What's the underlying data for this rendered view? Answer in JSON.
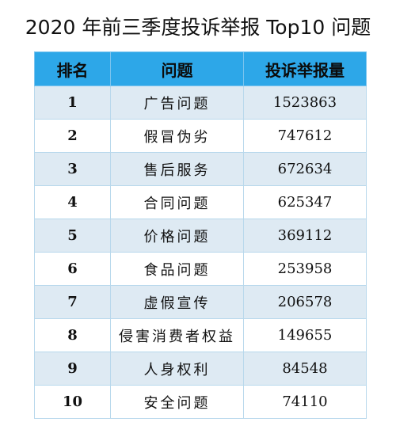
{
  "title": "2020 年前三季度投诉举报 Top10 问题",
  "table": {
    "headers": [
      "排名",
      "问题",
      "投诉举报量"
    ],
    "rows": [
      {
        "rank": "1",
        "issue": "广告问题",
        "count": "1523863"
      },
      {
        "rank": "2",
        "issue": "假冒伪劣",
        "count": "747612"
      },
      {
        "rank": "3",
        "issue": "售后服务",
        "count": "672634"
      },
      {
        "rank": "4",
        "issue": "合同问题",
        "count": "625347"
      },
      {
        "rank": "5",
        "issue": "价格问题",
        "count": "369112"
      },
      {
        "rank": "6",
        "issue": "食品问题",
        "count": "253958"
      },
      {
        "rank": "7",
        "issue": "虚假宣传",
        "count": "206578"
      },
      {
        "rank": "8",
        "issue": "侵害消费者权益",
        "count": "149655"
      },
      {
        "rank": "9",
        "issue": "人身权利",
        "count": "84548"
      },
      {
        "rank": "10",
        "issue": "安全问题",
        "count": "74110"
      }
    ]
  },
  "colors": {
    "header_bg": "#2da7e8",
    "odd_row_bg": "#deeaf3",
    "even_row_bg": "#ffffff"
  }
}
